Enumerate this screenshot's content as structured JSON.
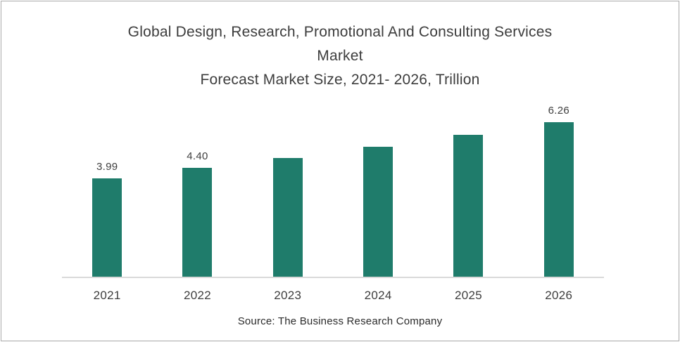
{
  "chart_data": {
    "type": "bar",
    "title_lines": [
      "Global Design, Research, Promotional And Consulting Services",
      "Market",
      "Forecast Market Size, 2021- 2026, Trillion"
    ],
    "categories": [
      "2021",
      "2022",
      "2023",
      "2024",
      "2025",
      "2026"
    ],
    "values": [
      3.99,
      4.4,
      4.8,
      5.26,
      5.74,
      6.26
    ],
    "data_labels": [
      "3.99",
      "4.40",
      "",
      "",
      "",
      "6.26"
    ],
    "title": "Global Design, Research, Promotional And Consulting Services Market Forecast Market Size, 2021- 2026, Trillion",
    "xlabel": "",
    "ylabel": "",
    "ylim": [
      0,
      7
    ],
    "grid": false,
    "legend_position": "none",
    "bar_color": "#1F7C6B",
    "label_color": "#404040",
    "axis_line_color": "#D9D9D9",
    "source_note": "Source: The Business Research Company"
  }
}
